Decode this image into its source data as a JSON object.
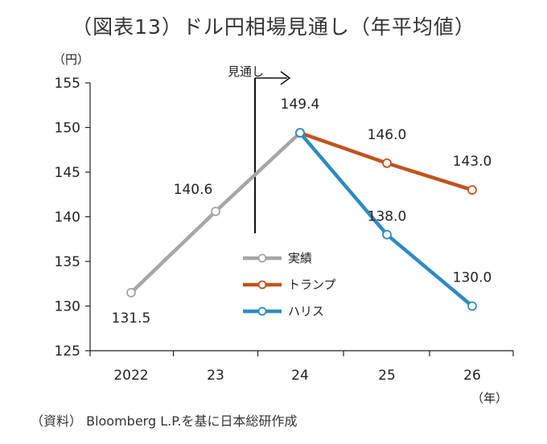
{
  "title": "（図表13）ドル円相場見通し（年平均値）",
  "source": "（資料） Bloomberg L.P.を基に日本総研作成",
  "chart_data": {
    "type": "line",
    "title": "（図表13）ドル円相場見通し（年平均値）",
    "y_unit": "（円）",
    "x_unit": "（年）",
    "categories": [
      "2022",
      "23",
      "24",
      "25",
      "26"
    ],
    "ylim": [
      125,
      155
    ],
    "yticks": [
      125,
      130,
      135,
      140,
      145,
      150,
      155
    ],
    "grid": false,
    "legend_position": "center",
    "forecast_marker_label": "見通し",
    "series": [
      {
        "name": "実績",
        "color": "#a6a6a6",
        "values": [
          131.5,
          140.6,
          149.4,
          null,
          null
        ],
        "labels": [
          "131.5",
          "140.6",
          "149.4",
          "",
          ""
        ]
      },
      {
        "name": "トランプ",
        "color": "#c0531f",
        "values": [
          null,
          null,
          149.4,
          146.0,
          143.0
        ],
        "labels": [
          "",
          "",
          "",
          "146.0",
          "143.0"
        ]
      },
      {
        "name": "ハリス",
        "color": "#2e8bc0",
        "values": [
          null,
          null,
          149.4,
          138.0,
          130.0
        ],
        "labels": [
          "",
          "",
          "",
          "138.0",
          "130.0"
        ]
      }
    ]
  }
}
